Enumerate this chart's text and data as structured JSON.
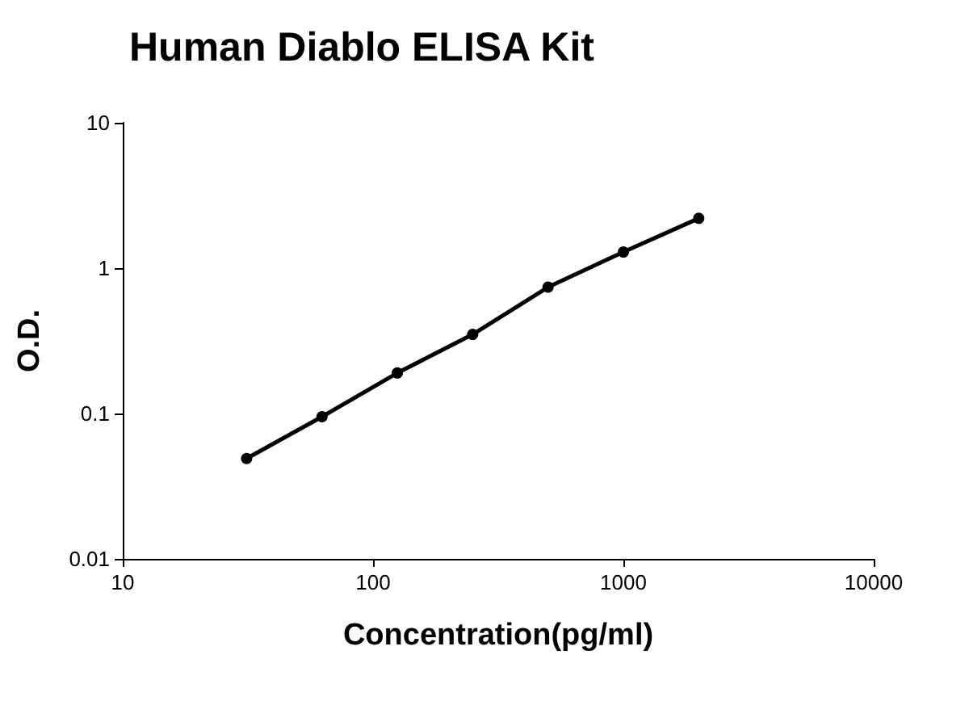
{
  "chart_data": {
    "type": "line",
    "title": "Human Diablo ELISA Kit",
    "xlabel": "Concentration(pg/ml)",
    "ylabel": "O.D.",
    "x": [
      31.25,
      62.5,
      125,
      250,
      500,
      1000,
      2000
    ],
    "series": [
      {
        "color": "#000000",
        "values": [
          0.049,
          0.095,
          0.19,
          0.35,
          0.74,
          1.29,
          2.2
        ]
      }
    ],
    "log": "xy",
    "xlim": [
      10,
      10000
    ],
    "xticks": [
      10,
      100,
      1000,
      10000
    ],
    "ylim": [
      0.01,
      10
    ],
    "yticks": [
      0.01,
      0.1,
      1,
      10
    ],
    "grid": false,
    "marker": "circle",
    "line_style": "solid"
  }
}
